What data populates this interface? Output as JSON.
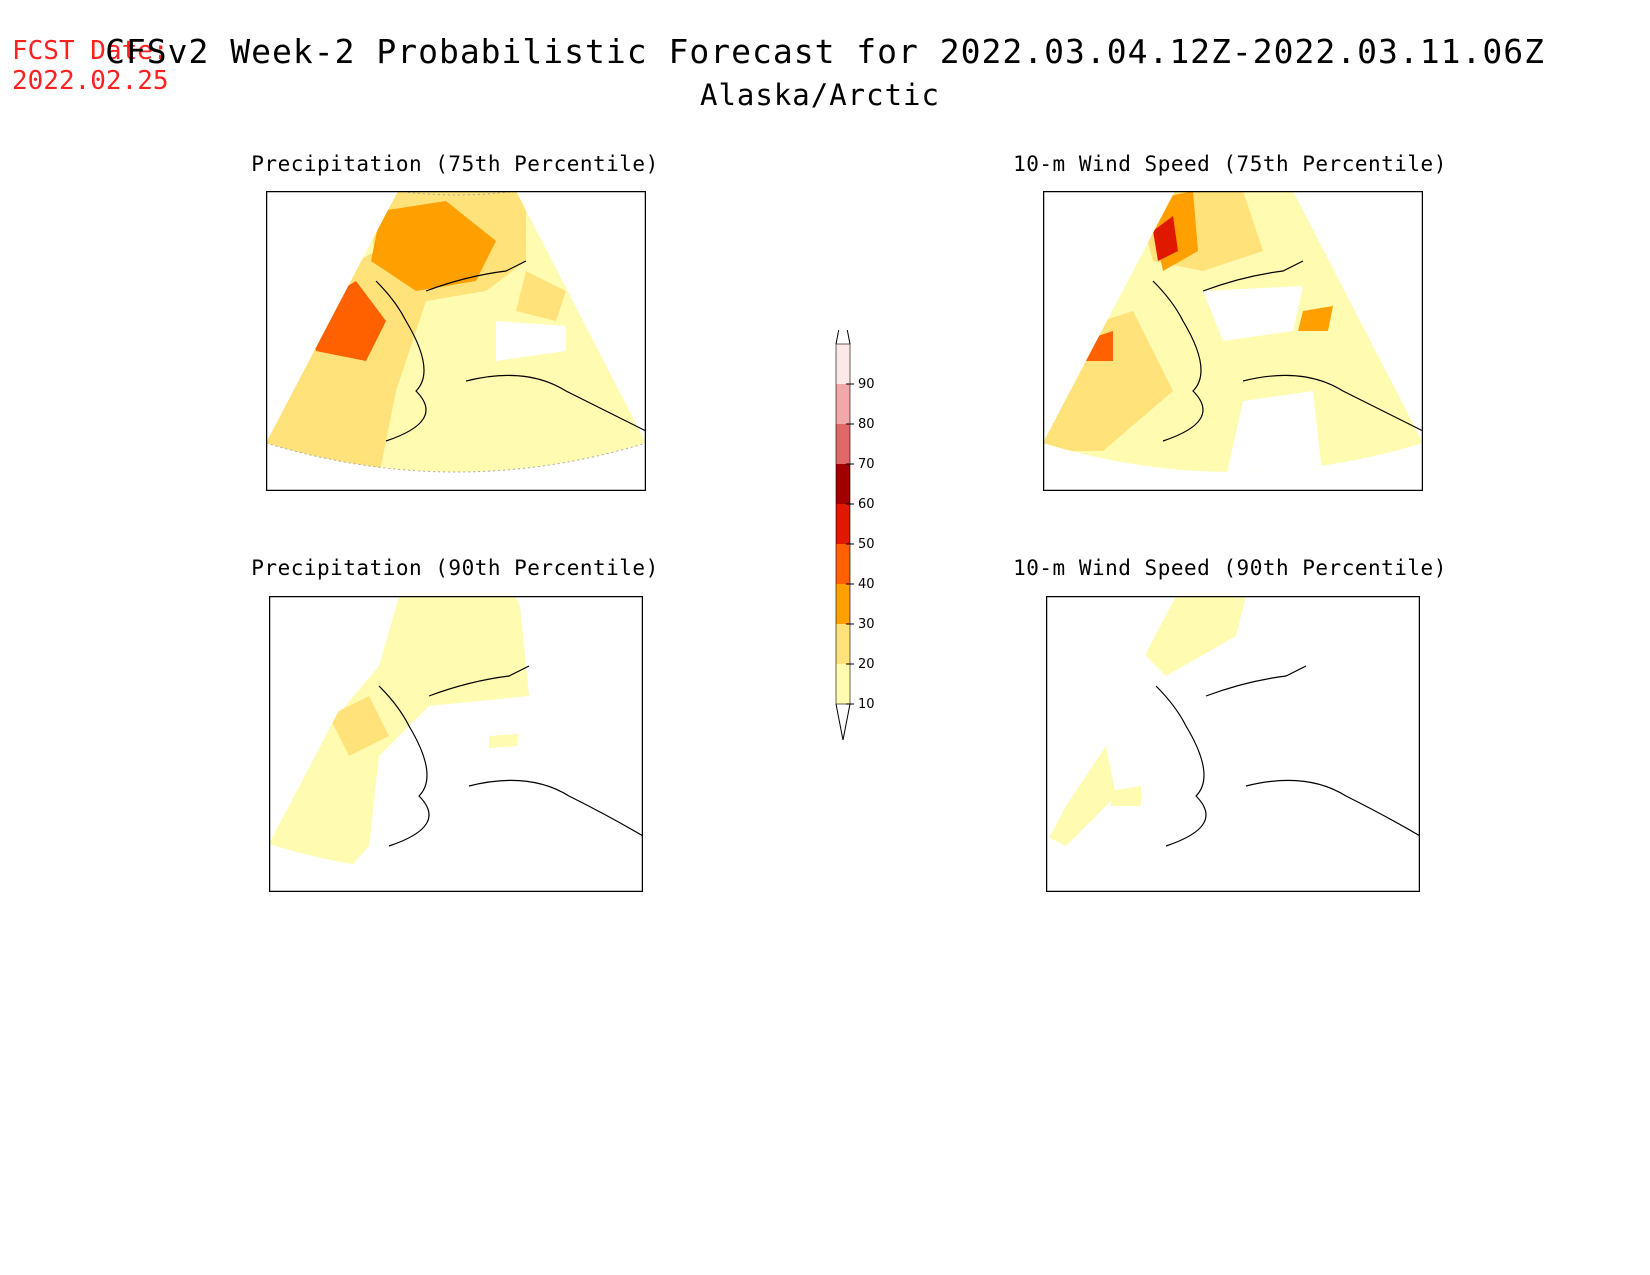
{
  "header": {
    "fcst_label": "FCST Date:",
    "fcst_date": "2022.02.25",
    "title": "CFSv2 Week-2 Probabilistic Forecast for 2022.03.04.12Z-2022.03.11.06Z",
    "region": "Alaska/Arctic"
  },
  "panels": [
    {
      "title": "Precipitation (75th Percentile)"
    },
    {
      "title": "10-m Wind Speed (75th Percentile)"
    },
    {
      "title": "Precipitation (90th Percentile)"
    },
    {
      "title": "10-m Wind Speed (90th Percentile)"
    }
  ],
  "colorbar": {
    "levels": [
      "10",
      "20",
      "30",
      "40",
      "50",
      "60",
      "70",
      "80",
      "90"
    ],
    "colors": [
      "#fffbb0",
      "#ffe27a",
      "#ffa000",
      "#ff6000",
      "#e01800",
      "#a00000",
      "#e06868",
      "#f0a8a8",
      "#fde8e8"
    ]
  }
}
